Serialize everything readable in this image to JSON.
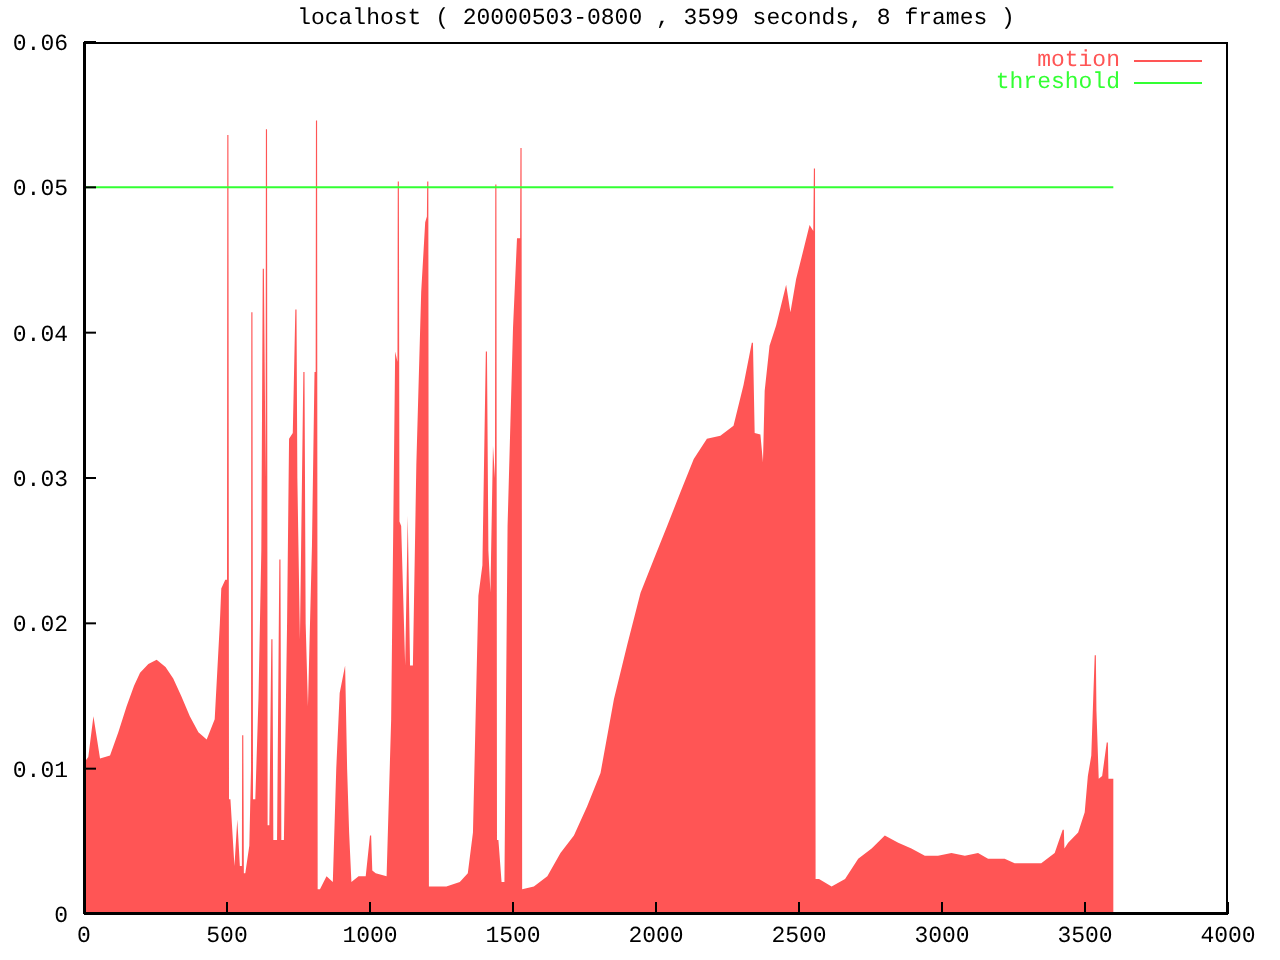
{
  "chart_data": {
    "type": "area",
    "title": "localhost ( 20000503-0800 , 3599 seconds, 8 frames )",
    "xlim": [
      0,
      4000
    ],
    "xticks": [
      0,
      500,
      1000,
      1500,
      2000,
      2500,
      3000,
      3500,
      4000
    ],
    "ylim": [
      0,
      0.06
    ],
    "yticks": [
      0,
      0.01,
      0.02,
      0.03,
      0.04,
      0.05,
      0.06
    ],
    "grid": false,
    "legend": "top right",
    "series": [
      {
        "name": "motion",
        "color": "#ff5555",
        "x": [
          0,
          15,
          33,
          56,
          91,
          120,
          149,
          175,
          196,
          225,
          254,
          285,
          312,
          340,
          370,
          400,
          429,
          457,
          475,
          480,
          494,
          500,
          501,
          505,
          507,
          512,
          526,
          536,
          545,
          552,
          553,
          557,
          559,
          564,
          578,
          584,
          585,
          589,
          591,
          599,
          610,
          620,
          625,
          629,
          635,
          636,
          640,
          642,
          648,
          655,
          659,
          662,
          675,
          683,
          687,
          690,
          699,
          710,
          717,
          730,
          739,
          743,
          746,
          755,
          767,
          771,
          775,
          783,
          797,
          806,
          810,
          811,
          815,
          817,
          825,
          848,
          870,
          882,
          894,
          913,
          920,
          927,
          935,
          960,
          985,
          1000,
          1004,
          1008,
          1020,
          1058,
          1074,
          1088,
          1096,
          1097,
          1101,
          1103,
          1109,
          1123,
          1132,
          1140,
          1150,
          1162,
          1179,
          1193,
          1199,
          1200,
          1204,
          1206,
          1209,
          1267,
          1314,
          1342,
          1360,
          1379,
          1393,
          1405,
          1409,
          1414,
          1421,
          1430,
          1437,
          1438,
          1442,
          1444,
          1449,
          1460,
          1470,
          1481,
          1500,
          1514,
          1525,
          1526,
          1530,
          1532,
          1573,
          1620,
          1666,
          1713,
          1759,
          1806,
          1853,
          1899,
          1946,
          1992,
          2039,
          2085,
          2132,
          2178,
          2225,
          2271,
          2306,
          2335,
          2339,
          2345,
          2365,
          2374,
          2380,
          2397,
          2420,
          2455,
          2470,
          2490,
          2513,
          2537,
          2550,
          2552,
          2556,
          2558,
          2570,
          2614,
          2661,
          2707,
          2754,
          2800,
          2847,
          2893,
          2940,
          2986,
          3033,
          3080,
          3126,
          3161,
          3219,
          3254,
          3312,
          3347,
          3394,
          3422,
          3426,
          3428,
          3441,
          3476,
          3499,
          3510,
          3522,
          3529,
          3534,
          3538,
          3540,
          3548,
          3560,
          3576,
          3580,
          3582,
          3599
        ],
        "values": [
          0.0104,
          0.0108,
          0.0136,
          0.0107,
          0.0109,
          0.0125,
          0.0143,
          0.0157,
          0.0166,
          0.0172,
          0.0175,
          0.017,
          0.0162,
          0.015,
          0.0136,
          0.0125,
          0.012,
          0.0134,
          0.02,
          0.0224,
          0.023,
          0.023,
          0.0536,
          0.0536,
          0.0079,
          0.0079,
          0.0033,
          0.0065,
          0.0033,
          0.0033,
          0.0123,
          0.0123,
          0.0028,
          0.0028,
          0.0047,
          0.01,
          0.0414,
          0.0414,
          0.0079,
          0.0079,
          0.0148,
          0.025,
          0.0444,
          0.0444,
          0.03,
          0.054,
          0.054,
          0.0061,
          0.0061,
          0.0189,
          0.0189,
          0.0051,
          0.0051,
          0.0244,
          0.0244,
          0.0051,
          0.0051,
          0.02,
          0.0327,
          0.0331,
          0.0416,
          0.0416,
          0.03,
          0.0189,
          0.0373,
          0.0373,
          0.02,
          0.0143,
          0.0253,
          0.0373,
          0.0373,
          0.0546,
          0.0546,
          0.0017,
          0.0017,
          0.0026,
          0.0022,
          0.01,
          0.0152,
          0.0171,
          0.01,
          0.0056,
          0.0022,
          0.0026,
          0.0026,
          0.0054,
          0.0054,
          0.003,
          0.0028,
          0.0026,
          0.0134,
          0.0387,
          0.038,
          0.0504,
          0.0504,
          0.027,
          0.0267,
          0.0171,
          0.0274,
          0.0171,
          0.0171,
          0.0309,
          0.0428,
          0.0476,
          0.048,
          0.0504,
          0.0504,
          0.0019,
          0.0019,
          0.0019,
          0.0022,
          0.0028,
          0.0056,
          0.0219,
          0.024,
          0.0387,
          0.0387,
          0.025,
          0.0221,
          0.0322,
          0.03,
          0.0502,
          0.0502,
          0.0051,
          0.0051,
          0.0022,
          0.0022,
          0.0267,
          0.0403,
          0.0465,
          0.0465,
          0.0527,
          0.0527,
          0.0017,
          0.0019,
          0.0026,
          0.0042,
          0.0054,
          0.0074,
          0.0097,
          0.0148,
          0.0185,
          0.0221,
          0.0244,
          0.0267,
          0.029,
          0.0313,
          0.0327,
          0.0329,
          0.0336,
          0.0364,
          0.0393,
          0.0393,
          0.0331,
          0.033,
          0.0311,
          0.036,
          0.0391,
          0.0405,
          0.0433,
          0.0414,
          0.0437,
          0.0455,
          0.0474,
          0.047,
          0.0513,
          0.0513,
          0.0024,
          0.0024,
          0.0019,
          0.0024,
          0.0038,
          0.0045,
          0.0054,
          0.0049,
          0.0045,
          0.004,
          0.004,
          0.0042,
          0.004,
          0.0042,
          0.0038,
          0.0038,
          0.0035,
          0.0035,
          0.0035,
          0.0042,
          0.0058,
          0.0058,
          0.0045,
          0.0049,
          0.0056,
          0.007,
          0.0095,
          0.0109,
          0.015,
          0.0178,
          0.0178,
          0.014,
          0.0093,
          0.0095,
          0.0118,
          0.0118,
          0.0093,
          0.0093
        ]
      },
      {
        "name": "threshold",
        "type": "line",
        "color": "#33ff33",
        "x": [
          0,
          3599
        ],
        "values": [
          0.05,
          0.05
        ]
      }
    ]
  }
}
